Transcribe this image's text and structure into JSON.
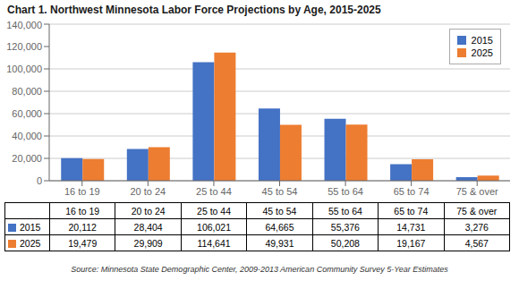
{
  "chart_data": {
    "type": "bar",
    "title": "Chart 1. Northwest Minnesota Labor Force Projections by Age, 2015-2025",
    "categories": [
      "16 to 19",
      "20 to 24",
      "25 to 44",
      "45 to 54",
      "55 to 64",
      "65 to 74",
      "75 & over"
    ],
    "series": [
      {
        "name": "2015",
        "color": "#4472C4",
        "values": [
          20112,
          28404,
          106021,
          64665,
          55376,
          14731,
          3276
        ],
        "value_labels": [
          "20,112",
          "28,404",
          "106,021",
          "64,665",
          "55,376",
          "14,731",
          "3,276"
        ]
      },
      {
        "name": "2025",
        "color": "#ED7D31",
        "values": [
          19479,
          29909,
          114641,
          49931,
          50208,
          19167,
          4567
        ],
        "value_labels": [
          "19,479",
          "29,909",
          "114,641",
          "49,931",
          "50,208",
          "19,167",
          "4,567"
        ]
      }
    ],
    "ylim": [
      0,
      140000
    ],
    "yticks": [
      0,
      {
        "value": 20000,
        "label": "20,000"
      },
      {
        "value": 40000,
        "label": "40,000"
      },
      {
        "value": 60000,
        "label": "60,000"
      },
      {
        "value": 80000,
        "label": "80,000"
      },
      {
        "value": 100000,
        "label": "100,000"
      },
      {
        "value": 120000,
        "label": "120,000"
      },
      {
        "value": 140000,
        "label": "140,000"
      }
    ],
    "grid": true,
    "legend": "upper right",
    "annotations": [
      "Source: Minnesota State Demographic Center, 2009-2013 American Community Survey 5-Year Estimates"
    ]
  }
}
